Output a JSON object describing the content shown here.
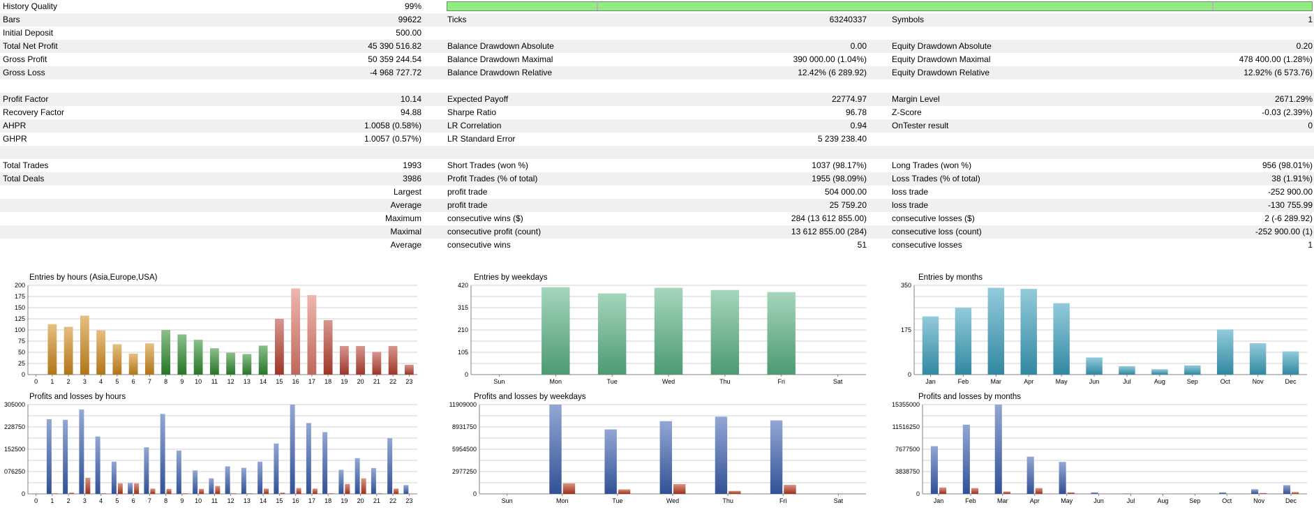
{
  "history_quality": {
    "label": "History Quality",
    "value": "99%",
    "fill_fraction": 0.99
  },
  "rows": [
    {
      "c1": [
        "Bars",
        "99622"
      ],
      "c2": [
        "Ticks",
        "63240337"
      ],
      "c3": [
        "Symbols",
        "1"
      ]
    },
    {
      "c1": [
        "Initial Deposit",
        "500.00"
      ],
      "c2": [
        "",
        ""
      ],
      "c3": [
        "",
        ""
      ]
    },
    {
      "c1": [
        "Total Net Profit",
        "45 390 516.82"
      ],
      "c2": [
        "Balance Drawdown Absolute",
        "0.00"
      ],
      "c3": [
        "Equity Drawdown Absolute",
        "0.20"
      ]
    },
    {
      "c1": [
        "Gross Profit",
        "50 359 244.54"
      ],
      "c2": [
        "Balance Drawdown Maximal",
        "390 000.00 (1.04%)"
      ],
      "c3": [
        "Equity Drawdown Maximal",
        "478 400.00 (1.28%)"
      ]
    },
    {
      "c1": [
        "Gross Loss",
        "-4 968 727.72"
      ],
      "c2": [
        "Balance Drawdown Relative",
        "12.42% (6 289.92)"
      ],
      "c3": [
        "Equity Drawdown Relative",
        "12.92% (6 573.76)"
      ]
    },
    {
      "c1": [
        "",
        ""
      ],
      "c2": [
        "",
        ""
      ],
      "c3": [
        "",
        ""
      ]
    },
    {
      "c1": [
        "Profit Factor",
        "10.14"
      ],
      "c2": [
        "Expected Payoff",
        "22774.97"
      ],
      "c3": [
        "Margin Level",
        "2671.29%"
      ]
    },
    {
      "c1": [
        "Recovery Factor",
        "94.88"
      ],
      "c2": [
        "Sharpe Ratio",
        "96.78"
      ],
      "c3": [
        "Z-Score",
        "-0.03 (2.39%)"
      ]
    },
    {
      "c1": [
        "AHPR",
        "1.0058 (0.58%)"
      ],
      "c2": [
        "LR Correlation",
        "0.94"
      ],
      "c3": [
        "OnTester result",
        "0"
      ]
    },
    {
      "c1": [
        "GHPR",
        "1.0057 (0.57%)"
      ],
      "c2": [
        "LR Standard Error",
        "5 239 238.40"
      ],
      "c3": [
        "",
        ""
      ]
    },
    {
      "c1": [
        "",
        ""
      ],
      "c2": [
        "",
        ""
      ],
      "c3": [
        "",
        ""
      ]
    },
    {
      "c1": [
        "Total Trades",
        "1993"
      ],
      "c2": [
        "Short Trades (won %)",
        "1037 (98.17%)"
      ],
      "c3": [
        "Long Trades (won %)",
        "956 (98.01%)"
      ]
    },
    {
      "c1": [
        "Total Deals",
        "3986"
      ],
      "c2": [
        "Profit Trades (% of total)",
        "1955 (98.09%)"
      ],
      "c3": [
        "Loss Trades (% of total)",
        "38 (1.91%)"
      ]
    },
    {
      "c1": [
        "",
        "Largest"
      ],
      "c2": [
        "profit trade",
        "504 000.00"
      ],
      "c3": [
        "loss trade",
        "-252 900.00"
      ]
    },
    {
      "c1": [
        "",
        "Average"
      ],
      "c2": [
        "profit trade",
        "25 759.20"
      ],
      "c3": [
        "loss trade",
        "-130 755.99"
      ]
    },
    {
      "c1": [
        "",
        "Maximum"
      ],
      "c2": [
        "consecutive wins ($)",
        "284 (13 612 855.00)"
      ],
      "c3": [
        "consecutive losses ($)",
        "2 (-6 289.92)"
      ]
    },
    {
      "c1": [
        "",
        "Maximal"
      ],
      "c2": [
        "consecutive profit (count)",
        "13 612 855.00 (284)"
      ],
      "c3": [
        "consecutive loss (count)",
        "-252 900.00 (1)"
      ]
    },
    {
      "c1": [
        "",
        "Average"
      ],
      "c2": [
        "consecutive wins",
        "51"
      ],
      "c3": [
        "consecutive losses",
        "1"
      ]
    }
  ],
  "chart_data": [
    {
      "type": "bar",
      "id": "entries-hours",
      "title": "Entries by hours (Asia,Europe,USA)",
      "categories": [
        "0",
        "1",
        "2",
        "3",
        "4",
        "5",
        "6",
        "7",
        "8",
        "9",
        "10",
        "11",
        "12",
        "13",
        "14",
        "15",
        "16",
        "17",
        "18",
        "19",
        "20",
        "21",
        "22",
        "23"
      ],
      "values": [
        0,
        113,
        107,
        132,
        99,
        68,
        47,
        70,
        100,
        90,
        78,
        59,
        49,
        46,
        65,
        125,
        193,
        178,
        122,
        64,
        64,
        51,
        64,
        22
      ],
      "ylim": [
        0,
        200
      ],
      "yticks": [
        "0",
        "25",
        "50",
        "75",
        "100",
        "125",
        "150",
        "175",
        "200"
      ],
      "colors": [
        "#d08a1c",
        "#d08a1c",
        "#d08a1c",
        "#d08a1c",
        "#d08a1c",
        "#d08a1c",
        "#d08a1c",
        "#d08a1c",
        "#2e8b2e",
        "#2e8b2e",
        "#2e8b2e",
        "#2e8b2e",
        "#2e8b2e",
        "#2e8b2e",
        "#2e8b2e",
        "#b84030",
        "#e07a6a",
        "#e07a6a",
        "#b84030",
        "#b84030",
        "#b84030",
        "#b84030",
        "#b84030",
        "#b84030"
      ]
    },
    {
      "type": "bar",
      "id": "entries-weekdays",
      "title": "Entries by weekdays",
      "categories": [
        "Sun",
        "Mon",
        "Tue",
        "Wed",
        "Thu",
        "Fri",
        "Sat"
      ],
      "values": [
        0,
        411,
        382,
        408,
        398,
        388,
        0
      ],
      "ylim": [
        0,
        420
      ],
      "yticks": [
        "0",
        "105",
        "210",
        "315",
        "420"
      ],
      "color": "#5bb585"
    },
    {
      "type": "bar",
      "id": "entries-months",
      "title": "Entries by months",
      "categories": [
        "Jan",
        "Feb",
        "Mar",
        "Apr",
        "May",
        "Jun",
        "Jul",
        "Aug",
        "Sep",
        "Oct",
        "Nov",
        "Dec"
      ],
      "values": [
        228,
        262,
        340,
        336,
        280,
        67,
        33,
        21,
        36,
        177,
        123,
        91
      ],
      "ylim": [
        0,
        350
      ],
      "yticks": [
        "0",
        "175",
        "350"
      ],
      "color": "#3aa0bd"
    },
    {
      "type": "bar",
      "id": "pl-hours",
      "title": "Profits and losses by hours",
      "categories": [
        "0",
        "1",
        "2",
        "3",
        "4",
        "5",
        "6",
        "7",
        "8",
        "9",
        "10",
        "11",
        "12",
        "13",
        "14",
        "15",
        "16",
        "17",
        "18",
        "19",
        "20",
        "21",
        "22",
        "23"
      ],
      "series": [
        {
          "values": [
            0,
            255000,
            253000,
            288000,
            196000,
            110000,
            37000,
            159000,
            273000,
            148000,
            80000,
            53000,
            94000,
            89000,
            110000,
            172000,
            305000,
            242000,
            211000,
            82000,
            122000,
            88000,
            190000,
            30000
          ]
        },
        {
          "values": [
            0,
            2000,
            4000,
            55000,
            2000,
            36000,
            36000,
            18000,
            17000,
            2000,
            17000,
            27000,
            2000,
            2000,
            18000,
            4000,
            20000,
            18000,
            2000,
            34000,
            53000,
            2000,
            18000,
            0
          ]
        }
      ],
      "ylim": [
        0,
        305000
      ],
      "yticks": [
        "0",
        "076250",
        "152500",
        "228750",
        "305000"
      ]
    },
    {
      "type": "bar",
      "id": "pl-weekdays",
      "title": "Profits and losses by weekdays",
      "categories": [
        "Sun",
        "Mon",
        "Tue",
        "Wed",
        "Thu",
        "Fri",
        "Sat"
      ],
      "series": [
        {
          "values": [
            0,
            11909000,
            8600000,
            9700000,
            10300000,
            9800000,
            0
          ]
        },
        {
          "values": [
            0,
            1400000,
            600000,
            1300000,
            400000,
            1200000,
            0
          ]
        }
      ],
      "ylim": [
        0,
        11909000
      ],
      "yticks": [
        "0",
        "2977250",
        "5954500",
        "8931750",
        "11909000"
      ]
    },
    {
      "type": "bar",
      "id": "pl-months",
      "title": "Profits and losses by months",
      "categories": [
        "Jan",
        "Feb",
        "Mar",
        "Apr",
        "May",
        "Jun",
        "Jul",
        "Aug",
        "Sep",
        "Oct",
        "Nov",
        "Dec"
      ],
      "series": [
        {
          "values": [
            8200000,
            11900000,
            15355000,
            6400000,
            5500000,
            250000,
            80000,
            40000,
            60000,
            250000,
            800000,
            1500000
          ]
        },
        {
          "values": [
            1100000,
            1000000,
            400000,
            1000000,
            250000,
            50000,
            20000,
            20000,
            20000,
            50000,
            150000,
            300000
          ]
        }
      ],
      "ylim": [
        0,
        15355000
      ],
      "yticks": [
        "0",
        "3838750",
        "7677500",
        "11516250",
        "15355000"
      ]
    }
  ],
  "colors": {
    "profit_bar": "#3a5fb0",
    "loss_bar": "#b83a1e",
    "grid": "#d0d0d0",
    "axis": "#808080",
    "alt_row": "#f0f0f0",
    "quality_bar": "#90ee80"
  }
}
